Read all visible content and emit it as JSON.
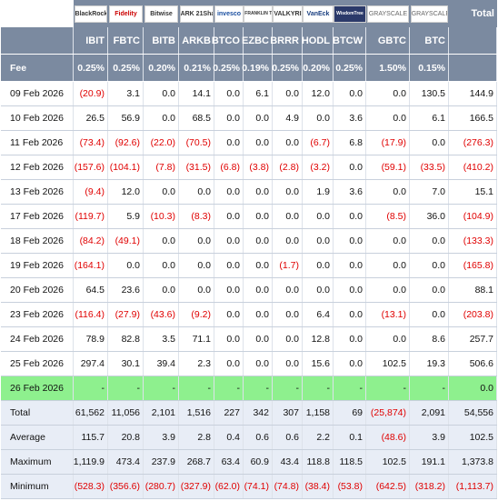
{
  "logos": [
    "BlackRock",
    "Fidelity",
    "Bitwise",
    "ARK 21Shares",
    "invesco",
    "FRANKLIN TEMPLETON",
    "VALKYRIE",
    "VanEck",
    "WisdomTree",
    "GRAYSCALE",
    "GRAYSCALE"
  ],
  "header": {
    "total_label": "Total",
    "fee_label": "Fee",
    "tickers": [
      "IBIT",
      "FBTC",
      "BITB",
      "ARKB",
      "BTCO",
      "EZBC",
      "BRRR",
      "HODL",
      "BTCW",
      "GBTC",
      "BTC"
    ],
    "fees": [
      "0.25%",
      "0.25%",
      "0.20%",
      "0.21%",
      "0.25%",
      "0.19%",
      "0.25%",
      "0.20%",
      "0.25%",
      "1.50%",
      "0.15%"
    ]
  },
  "rows": [
    {
      "date": "09 Feb 2026",
      "values": [
        "(20.9)",
        "3.1",
        "0.0",
        "14.1",
        "0.0",
        "6.1",
        "0.0",
        "12.0",
        "0.0",
        "0.0",
        "130.5"
      ],
      "total": "144.9"
    },
    {
      "date": "10 Feb 2026",
      "values": [
        "26.5",
        "56.9",
        "0.0",
        "68.5",
        "0.0",
        "0.0",
        "4.9",
        "0.0",
        "3.6",
        "0.0",
        "6.1"
      ],
      "total": "166.5"
    },
    {
      "date": "11 Feb 2026",
      "values": [
        "(73.4)",
        "(92.6)",
        "(22.0)",
        "(70.5)",
        "0.0",
        "0.0",
        "0.0",
        "(6.7)",
        "6.8",
        "(17.9)",
        "0.0"
      ],
      "total": "(276.3)"
    },
    {
      "date": "12 Feb 2026",
      "values": [
        "(157.6)",
        "(104.1)",
        "(7.8)",
        "(31.5)",
        "(6.8)",
        "(3.8)",
        "(2.8)",
        "(3.2)",
        "0.0",
        "(59.1)",
        "(33.5)"
      ],
      "total": "(410.2)"
    },
    {
      "date": "13 Feb 2026",
      "values": [
        "(9.4)",
        "12.0",
        "0.0",
        "0.0",
        "0.0",
        "0.0",
        "0.0",
        "1.9",
        "3.6",
        "0.0",
        "7.0"
      ],
      "total": "15.1"
    },
    {
      "date": "17 Feb 2026",
      "values": [
        "(119.7)",
        "5.9",
        "(10.3)",
        "(8.3)",
        "0.0",
        "0.0",
        "0.0",
        "0.0",
        "0.0",
        "(8.5)",
        "36.0"
      ],
      "total": "(104.9)"
    },
    {
      "date": "18 Feb 2026",
      "values": [
        "(84.2)",
        "(49.1)",
        "0.0",
        "0.0",
        "0.0",
        "0.0",
        "0.0",
        "0.0",
        "0.0",
        "0.0",
        "0.0"
      ],
      "total": "(133.3)"
    },
    {
      "date": "19 Feb 2026",
      "values": [
        "(164.1)",
        "0.0",
        "0.0",
        "0.0",
        "0.0",
        "0.0",
        "(1.7)",
        "0.0",
        "0.0",
        "0.0",
        "0.0"
      ],
      "total": "(165.8)"
    },
    {
      "date": "20 Feb 2026",
      "values": [
        "64.5",
        "23.6",
        "0.0",
        "0.0",
        "0.0",
        "0.0",
        "0.0",
        "0.0",
        "0.0",
        "0.0",
        "0.0"
      ],
      "total": "88.1"
    },
    {
      "date": "23 Feb 2026",
      "values": [
        "(116.4)",
        "(27.9)",
        "(43.6)",
        "(9.2)",
        "0.0",
        "0.0",
        "0.0",
        "6.4",
        "0.0",
        "(13.1)",
        "0.0"
      ],
      "total": "(203.8)"
    },
    {
      "date": "24 Feb 2026",
      "values": [
        "78.9",
        "82.8",
        "3.5",
        "71.1",
        "0.0",
        "0.0",
        "0.0",
        "12.8",
        "0.0",
        "0.0",
        "8.6"
      ],
      "total": "257.7"
    },
    {
      "date": "25 Feb 2026",
      "values": [
        "297.4",
        "30.1",
        "39.4",
        "2.3",
        "0.0",
        "0.0",
        "0.0",
        "15.6",
        "0.0",
        "102.5",
        "19.3"
      ],
      "total": "506.6"
    },
    {
      "date": "26 Feb 2026",
      "values": [
        "-",
        "-",
        "-",
        "-",
        "-",
        "-",
        "-",
        "-",
        "-",
        "-",
        "-"
      ],
      "total": "0.0",
      "highlight": true
    }
  ],
  "summary": [
    {
      "label": "Total",
      "values": [
        "61,562",
        "11,056",
        "2,101",
        "1,516",
        "227",
        "342",
        "307",
        "1,158",
        "69",
        "(25,874)",
        "2,091"
      ],
      "total": "54,556"
    },
    {
      "label": "Average",
      "values": [
        "115.7",
        "20.8",
        "3.9",
        "2.8",
        "0.4",
        "0.6",
        "0.6",
        "2.2",
        "0.1",
        "(48.6)",
        "3.9"
      ],
      "total": "102.5"
    },
    {
      "label": "Maximum",
      "values": [
        "1,119.9",
        "473.4",
        "237.9",
        "268.7",
        "63.4",
        "60.9",
        "43.4",
        "118.8",
        "118.5",
        "102.5",
        "191.1"
      ],
      "total": "1,373.8"
    },
    {
      "label": "Minimum",
      "values": [
        "(528.3)",
        "(356.6)",
        "(280.7)",
        "(327.9)",
        "(62.0)",
        "(74.1)",
        "(74.8)",
        "(38.4)",
        "(53.8)",
        "(642.5)",
        "(318.2)"
      ],
      "total": "(1,113.7)"
    }
  ]
}
